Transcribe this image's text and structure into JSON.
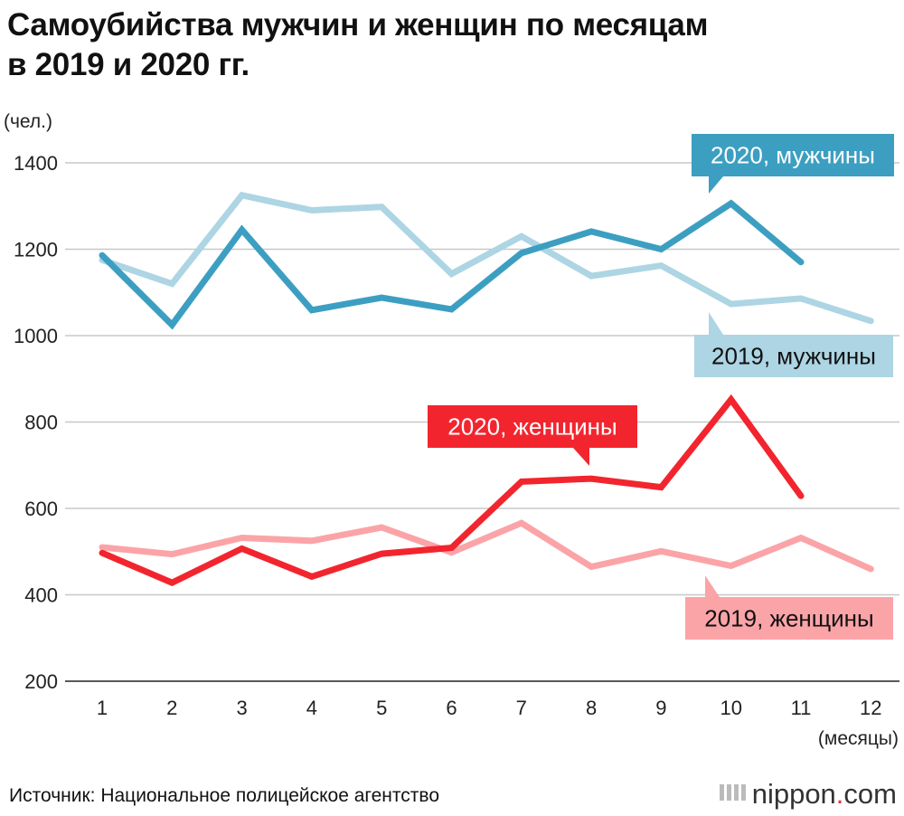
{
  "title_line1": "Самоубийства мужчин и женщин по месяцам",
  "title_line2": "в 2019 и 2020 гг.",
  "source": "Источник: Национальное полицейское агентство",
  "brand_main": "nippon",
  "brand_dot": ".",
  "brand_tld": "com",
  "chart_data": {
    "type": "line",
    "ylabel": "(чел.)",
    "xlabel": "(месяцы)",
    "x": [
      1,
      2,
      3,
      4,
      5,
      6,
      7,
      8,
      9,
      10,
      11,
      12
    ],
    "ylim": [
      200,
      1400
    ],
    "yticks": [
      200,
      400,
      600,
      800,
      1000,
      1200,
      1400
    ],
    "grid": true,
    "series": [
      {
        "name": "2019, мужчины",
        "color": "#add5e3",
        "values": [
          1175,
          1120,
          1325,
          1290,
          1298,
          1143,
          1230,
          1138,
          1162,
          1073,
          1086,
          1034
        ]
      },
      {
        "name": "2020, мужчины",
        "color": "#3c9fc1",
        "values": [
          1186,
          1025,
          1245,
          1059,
          1088,
          1061,
          1191,
          1241,
          1200,
          1306,
          1170,
          null
        ]
      },
      {
        "name": "2019, женщины",
        "color": "#fba4a8",
        "values": [
          510,
          494,
          532,
          525,
          556,
          498,
          566,
          465,
          501,
          467,
          532,
          460
        ]
      },
      {
        "name": "2020, женщины",
        "color": "#f2252e",
        "values": [
          497,
          428,
          507,
          442,
          495,
          509,
          662,
          669,
          649,
          852,
          629,
          null
        ]
      }
    ]
  }
}
